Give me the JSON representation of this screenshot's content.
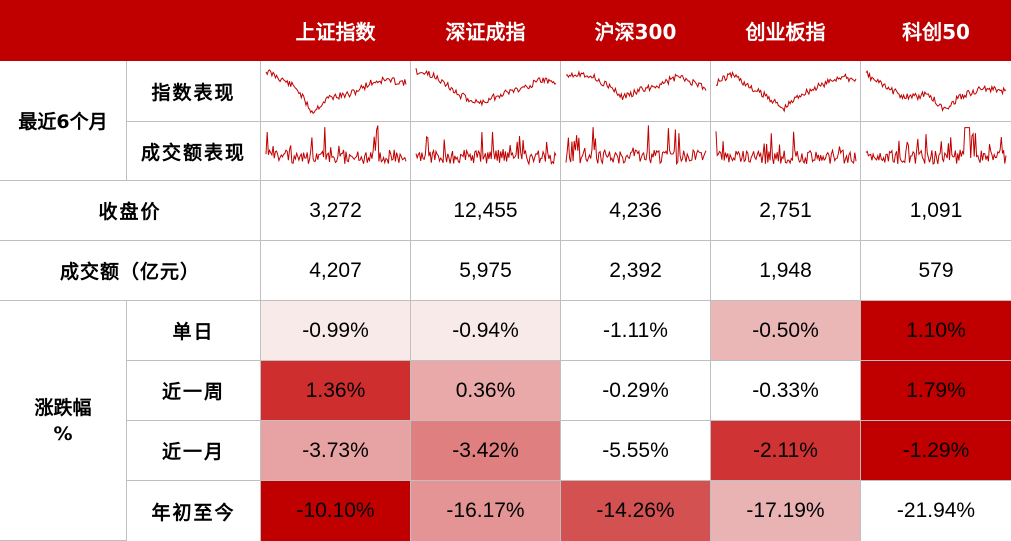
{
  "columns": [
    "上证指数",
    "深证成指",
    "沪深300",
    "创业板指",
    "科创50"
  ],
  "labels": {
    "recent_6m": "最近6个月",
    "index_perf": "指数表现",
    "volume_perf": "成交额表现",
    "close": "收盘价",
    "volume": "成交额（亿元）",
    "change": "涨跌幅",
    "change_unit": "%",
    "day": "单日",
    "week": "近一周",
    "month": "近一月",
    "ytd": "年初至今"
  },
  "close_values": [
    "3,272",
    "12,455",
    "4,236",
    "2,751",
    "1,091"
  ],
  "volume_values": [
    "4,207",
    "5,975",
    "2,392",
    "1,948",
    "579"
  ],
  "change_rows": [
    {
      "values": [
        "-0.99%",
        "-0.94%",
        "-1.11%",
        "-0.50%",
        "1.10%"
      ],
      "colors": [
        "#f9eaea",
        "#f9eaea",
        "#ffffff",
        "#ebb6b6",
        "#c00000"
      ]
    },
    {
      "values": [
        "1.36%",
        "0.36%",
        "-0.29%",
        "-0.33%",
        "1.79%"
      ],
      "colors": [
        "#cf2e2e",
        "#e9a9a9",
        "#ffffff",
        "#ffffff",
        "#c00000"
      ]
    },
    {
      "values": [
        "-3.73%",
        "-3.42%",
        "-5.55%",
        "-2.11%",
        "-1.29%"
      ],
      "colors": [
        "#e7a3a3",
        "#df7f7f",
        "#ffffff",
        "#d03333",
        "#c00000"
      ]
    },
    {
      "values": [
        "-10.10%",
        "-16.17%",
        "-14.26%",
        "-17.19%",
        "-21.94%"
      ],
      "colors": [
        "#c00000",
        "#e49494",
        "#d35151",
        "#eab3b3",
        "#ffffff"
      ]
    }
  ],
  "accent_color": "#c00000",
  "sparkline_color": "#c00000"
}
